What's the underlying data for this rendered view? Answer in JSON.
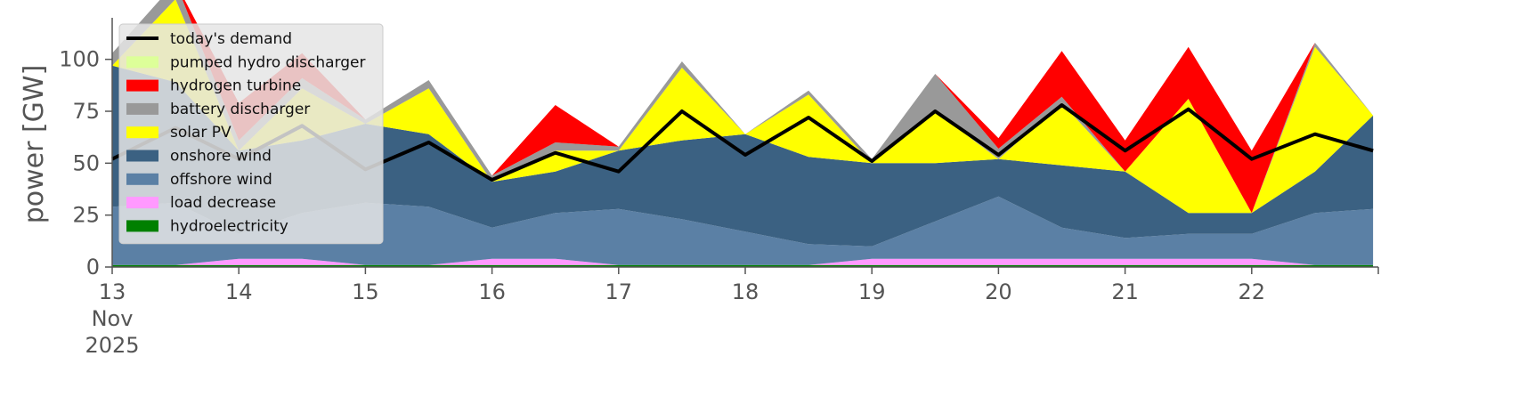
{
  "chart_data": {
    "type": "area",
    "title": "",
    "xlabel": "",
    "ylabel": "power [GW]",
    "ylim": [
      0,
      120
    ],
    "yticks": [
      0,
      25,
      50,
      75,
      100
    ],
    "x_range_days": [
      "2025-11-13",
      "2025-11-23"
    ],
    "x_ticks": [
      {
        "date": "2025-11-13",
        "label": "13",
        "sublabel": "Nov",
        "sublabel2": "2025"
      },
      {
        "date": "2025-11-14",
        "label": "14"
      },
      {
        "date": "2025-11-15",
        "label": "15"
      },
      {
        "date": "2025-11-16",
        "label": "16"
      },
      {
        "date": "2025-11-17",
        "label": "17"
      },
      {
        "date": "2025-11-18",
        "label": "18"
      },
      {
        "date": "2025-11-19",
        "label": "19"
      },
      {
        "date": "2025-11-20",
        "label": "20"
      },
      {
        "date": "2025-11-21",
        "label": "21"
      },
      {
        "date": "2025-11-22",
        "label": "22"
      }
    ],
    "x": [
      "2025-11-13 00:00",
      "2025-11-13 12:00",
      "2025-11-14 00:00",
      "2025-11-14 12:00",
      "2025-11-15 00:00",
      "2025-11-15 12:00",
      "2025-11-16 00:00",
      "2025-11-16 12:00",
      "2025-11-17 00:00",
      "2025-11-17 12:00",
      "2025-11-18 00:00",
      "2025-11-18 12:00",
      "2025-11-19 00:00",
      "2025-11-19 12:00",
      "2025-11-20 00:00",
      "2025-11-20 12:00",
      "2025-11-21 00:00",
      "2025-11-21 12:00",
      "2025-11-22 00:00",
      "2025-11-22 12:00",
      "2025-11-22 23:00"
    ],
    "grid": false,
    "legend_position": "upper-left",
    "series": [
      {
        "name": "hydroelectricity",
        "color": "#008000",
        "values": [
          1,
          1,
          1,
          1,
          1,
          1,
          1,
          1,
          1,
          1,
          1,
          1,
          1,
          1,
          1,
          1,
          1,
          1,
          1,
          1,
          1
        ]
      },
      {
        "name": "load decrease",
        "color": "#ff99ff",
        "values": [
          0,
          0,
          3,
          3,
          0,
          0,
          3,
          3,
          0,
          0,
          0,
          0,
          3,
          3,
          3,
          3,
          3,
          3,
          3,
          0,
          0
        ]
      },
      {
        "name": "offshore wind",
        "color": "#5b80a5",
        "values": [
          28,
          30,
          12,
          22,
          30,
          28,
          15,
          22,
          27,
          22,
          16,
          10,
          6,
          18,
          30,
          15,
          10,
          12,
          12,
          25,
          27
        ]
      },
      {
        "name": "onshore wind",
        "color": "#3b6182",
        "values": [
          68,
          58,
          40,
          35,
          38,
          35,
          22,
          20,
          28,
          38,
          47,
          42,
          40,
          28,
          18,
          30,
          32,
          10,
          10,
          20,
          45
        ]
      },
      {
        "name": "solar PV",
        "color": "#ffff00",
        "values": [
          0,
          40,
          0,
          25,
          0,
          22,
          0,
          10,
          0,
          35,
          0,
          30,
          0,
          25,
          0,
          30,
          0,
          55,
          0,
          60,
          0
        ]
      },
      {
        "name": "battery discharger",
        "color": "#999999",
        "values": [
          6,
          8,
          5,
          5,
          2,
          4,
          3,
          4,
          2,
          3,
          0,
          2,
          2,
          18,
          5,
          3,
          0,
          0,
          0,
          2,
          0
        ]
      },
      {
        "name": "hydrogen turbine",
        "color": "#ff0000",
        "values": [
          0,
          0,
          18,
          12,
          0,
          0,
          0,
          18,
          0,
          0,
          0,
          0,
          0,
          0,
          5,
          22,
          15,
          25,
          30,
          0,
          0
        ]
      },
      {
        "name": "pumped hydro discharger",
        "color": "#ddff99",
        "values": [
          0,
          0,
          0,
          0,
          0,
          0,
          0,
          0,
          0,
          0,
          0,
          0,
          0,
          0,
          0,
          0,
          0,
          0,
          0,
          0,
          0
        ]
      }
    ],
    "demand": {
      "name": "today's demand",
      "color": "#000000",
      "values": [
        52,
        67,
        52,
        68,
        47,
        60,
        42,
        55,
        46,
        75,
        54,
        72,
        51,
        75,
        54,
        78,
        56,
        76,
        52,
        64,
        56
      ]
    }
  }
}
